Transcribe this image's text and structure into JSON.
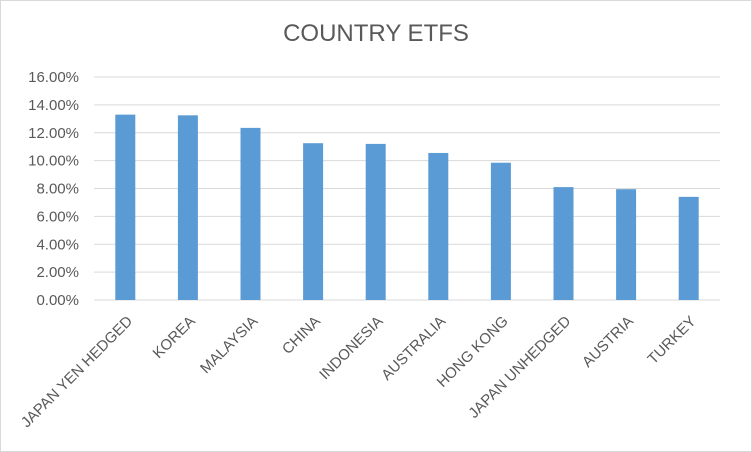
{
  "chart_data": {
    "type": "bar",
    "title": "COUNTRY ETFS",
    "categories": [
      "JAPAN YEN HEDGED",
      "KOREA",
      "MALAYSIA",
      "CHINA",
      "INDONESIA",
      "AUSTRALIA",
      "HONG KONG",
      "JAPAN UNHEDGED",
      "AUSTRIA",
      "TURKEY"
    ],
    "values": [
      13.3,
      13.25,
      12.35,
      11.25,
      11.2,
      10.55,
      9.85,
      8.1,
      7.95,
      7.4
    ],
    "ylim": [
      0,
      16
    ],
    "yticks": [
      "0.00%",
      "2.00%",
      "4.00%",
      "6.00%",
      "8.00%",
      "10.00%",
      "12.00%",
      "14.00%",
      "16.00%"
    ],
    "grid": true,
    "bar_color": "#5b9bd5",
    "grid_color": "#d9d9d9"
  }
}
